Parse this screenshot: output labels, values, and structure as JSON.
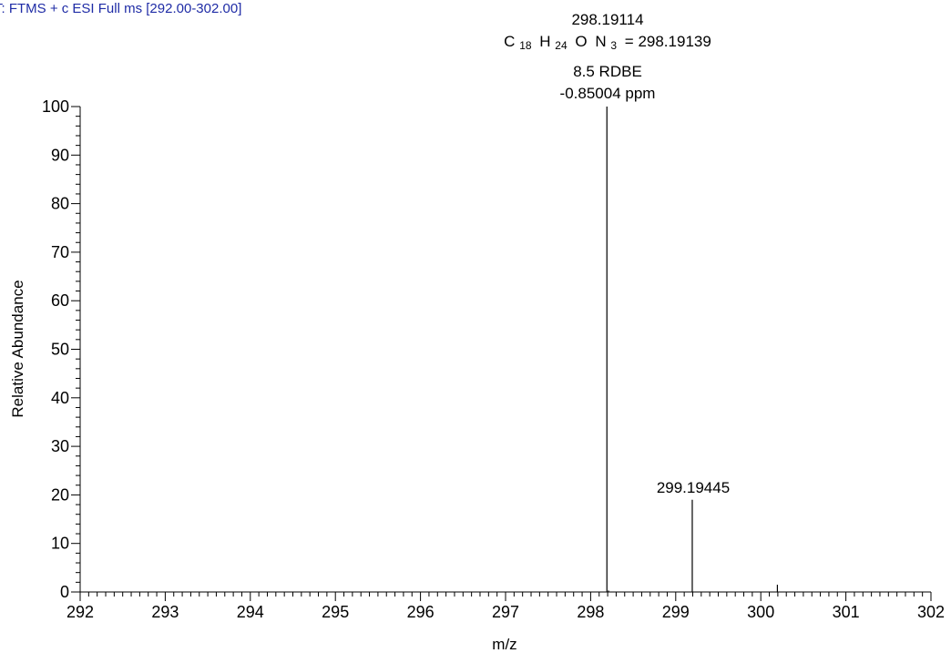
{
  "chart_data": {
    "type": "bar",
    "scan_header": "T: FTMS + c ESI Full ms [292.00-302.00]",
    "xlabel": "m/z",
    "ylabel": "Relative Abundance",
    "xlim": [
      292,
      302
    ],
    "ylim": [
      0,
      100
    ],
    "x_ticks": [
      "292",
      "293",
      "294",
      "295",
      "296",
      "297",
      "298",
      "299",
      "300",
      "301",
      "302"
    ],
    "y_ticks": [
      "0",
      "10",
      "20",
      "30",
      "40",
      "50",
      "60",
      "70",
      "80",
      "90",
      "100"
    ],
    "peaks": [
      {
        "mz": 298.19114,
        "intensity": 100
      },
      {
        "mz": 299.19445,
        "intensity": 19
      },
      {
        "mz": 300.195,
        "intensity": 1.5
      },
      {
        "mz": 298.21,
        "intensity": 0.3
      }
    ],
    "annotations": {
      "main_mz": "298.19114",
      "formula": {
        "c": "C",
        "c_n": "18",
        "h": "H",
        "h_n": "24",
        "o": "O",
        "n": "N",
        "n_n": "3",
        "calc": "= 298.19139"
      },
      "rdbe": "8.5 RDBE",
      "ppm": "-0.85004 ppm",
      "isotope_mz": "299.19445"
    },
    "grid": false,
    "legend": "none"
  }
}
